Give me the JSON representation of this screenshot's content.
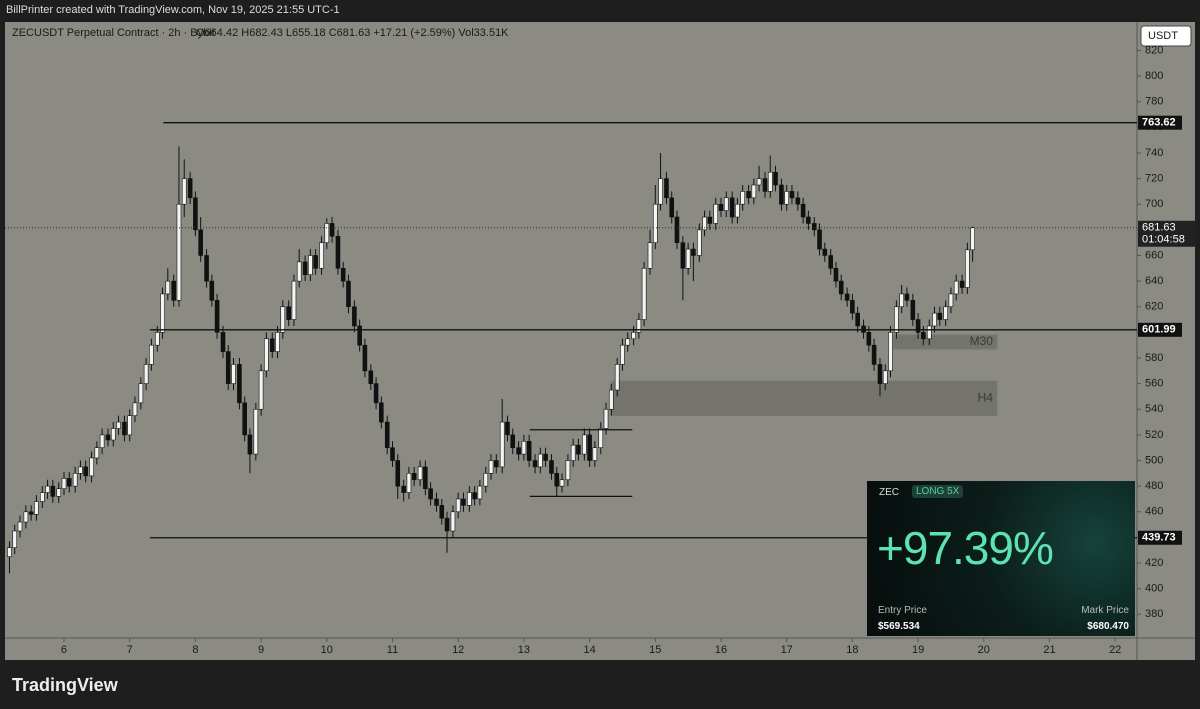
{
  "credit": "BillPrinter created with TradingView.com, Nov 19, 2025 21:55 UTC-1",
  "brand": "TradingView",
  "chart_data": {
    "type": "candlestick",
    "symbol": "ZECUSDT Perpetual Contract · 2h · Bybit",
    "legend_values": "O664.42  H682.43  L655.18  C681.63  +17.21 (+2.59%)  Vol33.51K",
    "currency": "USDT",
    "countdown": "01:04:58",
    "xlim": [
      5.102,
      22.332
    ],
    "xticks": [
      6,
      7,
      8,
      9,
      10,
      11,
      12,
      13,
      14,
      15,
      16,
      17,
      18,
      19,
      20,
      21,
      22
    ],
    "ylim": [
      361.5,
      842.2
    ],
    "yticks": [
      380,
      400,
      420,
      440,
      460,
      480,
      500,
      520,
      540,
      560,
      580,
      600,
      620,
      640,
      660,
      680,
      700,
      720,
      740,
      760,
      780,
      800,
      820
    ],
    "x": [
      5.17,
      5.25,
      5.33,
      5.42,
      5.5,
      5.58,
      5.67,
      5.75,
      5.83,
      5.92,
      6,
      6.08,
      6.17,
      6.25,
      6.33,
      6.42,
      6.5,
      6.58,
      6.67,
      6.75,
      6.83,
      6.92,
      7,
      7.08,
      7.17,
      7.25,
      7.33,
      7.42,
      7.5,
      7.58,
      7.67,
      7.75,
      7.83,
      7.92,
      8,
      8.08,
      8.17,
      8.25,
      8.33,
      8.42,
      8.5,
      8.58,
      8.67,
      8.75,
      8.83,
      8.92,
      9,
      9.08,
      9.17,
      9.25,
      9.33,
      9.42,
      9.5,
      9.58,
      9.67,
      9.75,
      9.83,
      9.92,
      10,
      10.08,
      10.17,
      10.25,
      10.33,
      10.42,
      10.5,
      10.58,
      10.67,
      10.75,
      10.83,
      10.92,
      11,
      11.08,
      11.17,
      11.25,
      11.33,
      11.42,
      11.5,
      11.58,
      11.67,
      11.75,
      11.83,
      11.92,
      12,
      12.08,
      12.17,
      12.25,
      12.33,
      12.42,
      12.5,
      12.58,
      12.67,
      12.75,
      12.83,
      12.92,
      13,
      13.08,
      13.17,
      13.25,
      13.33,
      13.42,
      13.5,
      13.58,
      13.67,
      13.75,
      13.83,
      13.92,
      14,
      14.08,
      14.17,
      14.25,
      14.33,
      14.42,
      14.5,
      14.58,
      14.67,
      14.75,
      14.83,
      14.92,
      15,
      15.08,
      15.17,
      15.25,
      15.33,
      15.42,
      15.5,
      15.58,
      15.67,
      15.75,
      15.83,
      15.92,
      16,
      16.08,
      16.17,
      16.25,
      16.33,
      16.42,
      16.5,
      16.58,
      16.67,
      16.75,
      16.83,
      16.92,
      17,
      17.08,
      17.17,
      17.25,
      17.33,
      17.42,
      17.5,
      17.58,
      17.67,
      17.75,
      17.83,
      17.92,
      18,
      18.08,
      18.17,
      18.25,
      18.33,
      18.42,
      18.5,
      18.58,
      18.67,
      18.75,
      18.83,
      18.92,
      19,
      19.08,
      19.17,
      19.25,
      19.33,
      19.42,
      19.5,
      19.58,
      19.67,
      19.75,
      19.83
    ],
    "open": [
      425,
      432,
      445,
      452,
      460,
      458,
      468,
      475,
      480,
      472,
      478,
      486,
      480,
      490,
      495,
      488,
      502,
      510,
      520,
      516,
      525,
      530,
      520,
      535,
      545,
      560,
      575,
      590,
      600,
      630,
      640,
      625,
      700,
      720,
      705,
      680,
      660,
      640,
      625,
      600,
      585,
      560,
      575,
      545,
      520,
      505,
      540,
      570,
      595,
      585,
      600,
      620,
      610,
      640,
      655,
      645,
      660,
      650,
      670,
      685,
      675,
      650,
      640,
      620,
      605,
      590,
      570,
      560,
      545,
      530,
      510,
      500,
      480,
      475,
      490,
      485,
      495,
      478,
      470,
      465,
      455,
      445,
      460,
      470,
      465,
      475,
      470,
      480,
      490,
      500,
      495,
      530,
      520,
      510,
      505,
      515,
      500,
      495,
      505,
      500,
      490,
      480,
      485,
      500,
      512,
      505,
      520,
      500,
      510,
      525,
      540,
      555,
      575,
      590,
      595,
      600,
      610,
      650,
      670,
      700,
      720,
      705,
      690,
      670,
      650,
      665,
      660,
      680,
      690,
      685,
      700,
      695,
      705,
      690,
      700,
      710,
      705,
      715,
      720,
      710,
      725,
      715,
      700,
      710,
      705,
      700,
      690,
      685,
      680,
      665,
      660,
      650,
      640,
      630,
      625,
      615,
      605,
      600,
      590,
      575,
      560,
      570,
      600,
      620,
      630,
      625,
      610,
      600,
      595,
      605,
      615,
      610,
      620,
      630,
      640,
      635,
      664.42
    ],
    "high": [
      437,
      450,
      457,
      465,
      465,
      473,
      480,
      485,
      485,
      483,
      491,
      491,
      495,
      500,
      500,
      507,
      515,
      525,
      525,
      530,
      535,
      535,
      540,
      550,
      565,
      580,
      595,
      605,
      635,
      650,
      645,
      745,
      735,
      725,
      710,
      690,
      665,
      645,
      630,
      605,
      590,
      580,
      580,
      550,
      525,
      545,
      575,
      600,
      600,
      605,
      625,
      625,
      645,
      665,
      660,
      665,
      665,
      675,
      689,
      690,
      680,
      655,
      645,
      625,
      610,
      595,
      575,
      565,
      550,
      535,
      515,
      505,
      485,
      495,
      495,
      500,
      500,
      483,
      475,
      470,
      460,
      465,
      475,
      475,
      480,
      480,
      485,
      495,
      505,
      505,
      548,
      535,
      525,
      515,
      520,
      520,
      505,
      510,
      510,
      505,
      495,
      490,
      505,
      517,
      517,
      525,
      525,
      515,
      530,
      545,
      560,
      580,
      595,
      600,
      605,
      615,
      655,
      680,
      715,
      740,
      725,
      710,
      695,
      675,
      670,
      670,
      685,
      695,
      695,
      705,
      705,
      710,
      710,
      705,
      715,
      715,
      720,
      730,
      725,
      738,
      730,
      720,
      715,
      715,
      710,
      705,
      695,
      690,
      685,
      670,
      665,
      655,
      645,
      635,
      630,
      620,
      610,
      605,
      595,
      580,
      575,
      605,
      625,
      637,
      635,
      630,
      615,
      605,
      610,
      620,
      620,
      625,
      635,
      645,
      645,
      670,
      682.43
    ],
    "low": [
      412,
      427,
      440,
      447,
      453,
      453,
      463,
      470,
      467,
      467,
      473,
      475,
      475,
      485,
      483,
      483,
      497,
      505,
      511,
      511,
      520,
      515,
      515,
      530,
      540,
      555,
      570,
      585,
      595,
      625,
      620,
      620,
      690,
      700,
      675,
      655,
      635,
      620,
      595,
      580,
      555,
      555,
      540,
      515,
      490,
      500,
      535,
      565,
      580,
      580,
      595,
      605,
      605,
      635,
      640,
      640,
      645,
      645,
      665,
      670,
      645,
      635,
      615,
      600,
      585,
      565,
      555,
      540,
      525,
      505,
      495,
      470,
      468,
      470,
      480,
      480,
      473,
      465,
      460,
      450,
      428,
      440,
      455,
      460,
      460,
      465,
      465,
      475,
      485,
      490,
      490,
      515,
      505,
      500,
      500,
      495,
      490,
      490,
      495,
      485,
      472,
      475,
      480,
      495,
      500,
      500,
      495,
      495,
      505,
      520,
      535,
      550,
      570,
      585,
      590,
      595,
      605,
      645,
      665,
      695,
      700,
      685,
      665,
      625,
      645,
      640,
      655,
      675,
      680,
      680,
      690,
      690,
      685,
      685,
      695,
      700,
      700,
      710,
      705,
      705,
      710,
      695,
      695,
      700,
      695,
      685,
      680,
      675,
      660,
      655,
      645,
      635,
      625,
      620,
      610,
      600,
      595,
      585,
      570,
      550,
      555,
      565,
      595,
      615,
      620,
      605,
      595,
      590,
      590,
      600,
      605,
      605,
      615,
      625,
      630,
      630,
      655.18
    ],
    "close": [
      432,
      445,
      452,
      460,
      458,
      468,
      475,
      480,
      472,
      478,
      486,
      480,
      490,
      495,
      488,
      502,
      510,
      520,
      516,
      525,
      530,
      520,
      535,
      545,
      560,
      575,
      590,
      600,
      630,
      640,
      625,
      700,
      720,
      705,
      680,
      660,
      640,
      625,
      600,
      585,
      560,
      575,
      545,
      520,
      505,
      540,
      570,
      595,
      585,
      600,
      620,
      610,
      640,
      655,
      645,
      660,
      650,
      670,
      685,
      675,
      650,
      640,
      620,
      605,
      590,
      570,
      560,
      545,
      530,
      510,
      500,
      480,
      475,
      490,
      485,
      495,
      478,
      470,
      465,
      455,
      445,
      460,
      470,
      465,
      475,
      470,
      480,
      490,
      500,
      495,
      530,
      520,
      510,
      505,
      515,
      500,
      495,
      505,
      500,
      490,
      480,
      485,
      500,
      512,
      505,
      520,
      500,
      510,
      525,
      540,
      555,
      575,
      590,
      595,
      600,
      610,
      650,
      670,
      700,
      720,
      705,
      690,
      670,
      650,
      665,
      660,
      680,
      690,
      685,
      700,
      695,
      705,
      690,
      700,
      710,
      705,
      715,
      720,
      710,
      725,
      715,
      700,
      710,
      705,
      700,
      690,
      685,
      680,
      665,
      660,
      650,
      640,
      630,
      625,
      615,
      605,
      600,
      590,
      575,
      560,
      570,
      600,
      620,
      630,
      625,
      610,
      600,
      595,
      605,
      615,
      610,
      620,
      630,
      640,
      635,
      664.42,
      681.63
    ],
    "levels": [
      {
        "value": 763.62,
        "from": 7.51
      },
      {
        "value": 601.99,
        "from": 7.31
      },
      {
        "value": 439.73,
        "from": 7.31
      }
    ],
    "segments": [
      {
        "value": 524,
        "from": 13.09,
        "to": 14.65
      },
      {
        "value": 472,
        "from": 13.09,
        "to": 14.65
      }
    ],
    "zones": [
      {
        "label": "M30",
        "low": 587,
        "high": 598,
        "from": 18.62,
        "to": 20.2
      },
      {
        "label": "H4",
        "low": 535,
        "high": 562,
        "from": 14.34,
        "to": 20.2
      }
    ],
    "position": {
      "asset": "ZEC",
      "side": "LONG 5X",
      "pnl": "+97.39%",
      "entry_label": "Entry Price",
      "entry": "$569.534",
      "mark_label": "Mark Price",
      "mark": "$680.470"
    }
  }
}
